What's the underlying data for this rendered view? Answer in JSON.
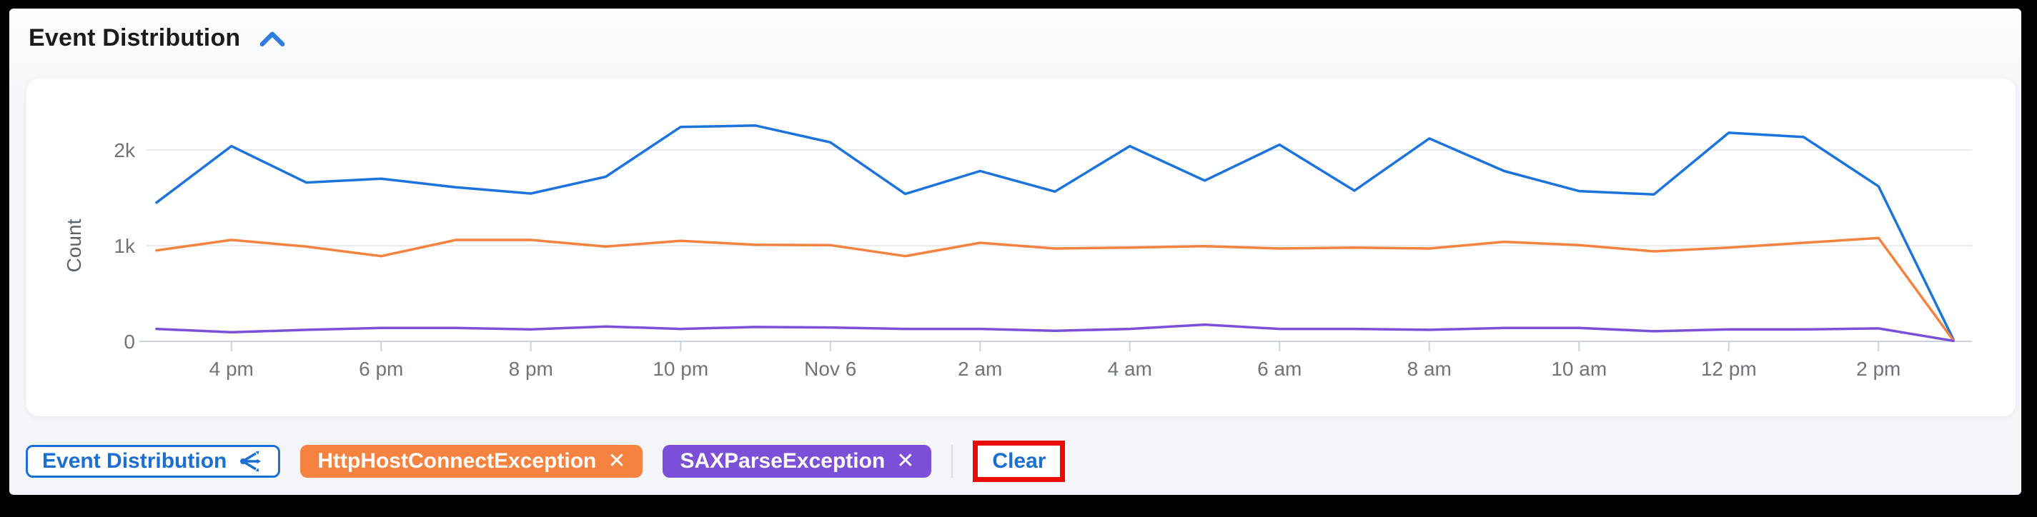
{
  "header": {
    "title": "Event Distribution",
    "collapse_icon": "chevron-up-icon"
  },
  "chart_data": {
    "type": "line",
    "title": "Event Distribution",
    "xlabel": "",
    "ylabel": "Count",
    "x": [
      "3 pm",
      "4 pm",
      "5 pm",
      "6 pm",
      "7 pm",
      "8 pm",
      "9 pm",
      "10 pm",
      "11 pm",
      "Nov 6",
      "1 am",
      "2 am",
      "3 am",
      "4 am",
      "5 am",
      "6 am",
      "7 am",
      "8 am",
      "9 am",
      "10 am",
      "11 am",
      "12 pm",
      "1 pm",
      "2 pm",
      "3 pm"
    ],
    "x_tick_labels": [
      "4 pm",
      "6 pm",
      "8 pm",
      "10 pm",
      "Nov 6",
      "2 am",
      "4 am",
      "6 am",
      "8 am",
      "10 am",
      "12 pm",
      "2 pm"
    ],
    "yticks": [
      {
        "label": "0",
        "value": 0
      },
      {
        "label": "1k",
        "value": 1000
      },
      {
        "label": "2k",
        "value": 2000
      }
    ],
    "ylim": [
      0,
      2400
    ],
    "grid": "horizontal-at-1k-2k",
    "legend_position": "none",
    "series": [
      {
        "name": "unlabeled-blue",
        "color": "#1b74dd",
        "values": [
          1450,
          2040,
          1660,
          1700,
          1610,
          1545,
          1720,
          2240,
          2255,
          2080,
          1540,
          1780,
          1565,
          2040,
          1680,
          2055,
          1575,
          2120,
          1780,
          1570,
          1535,
          2180,
          2135,
          1620,
          20
        ]
      },
      {
        "name": "HttpHostConnectException",
        "color": "#f5823f",
        "values": [
          950,
          1060,
          990,
          890,
          1060,
          1060,
          990,
          1050,
          1010,
          1005,
          890,
          1030,
          970,
          980,
          995,
          970,
          980,
          970,
          1040,
          1005,
          940,
          980,
          1030,
          1080,
          10
        ]
      },
      {
        "name": "SAXParseException",
        "color": "#7c4fd9",
        "values": [
          130,
          95,
          120,
          140,
          140,
          125,
          155,
          130,
          150,
          145,
          130,
          130,
          110,
          130,
          175,
          130,
          130,
          120,
          140,
          140,
          105,
          125,
          125,
          135,
          5
        ]
      }
    ]
  },
  "filters": {
    "chart_chip": {
      "label": "Event Distribution",
      "icon": "share-icon",
      "accent": "#1a6fd4"
    },
    "chips": [
      {
        "label": "HttpHostConnectException",
        "close": "✕",
        "color": "#f5823f"
      },
      {
        "label": "SAXParseException",
        "close": "✕",
        "color": "#7c4fd9"
      }
    ],
    "clear_label": "Clear"
  },
  "annotation": {
    "highlight_color": "#ea0b07",
    "highlighted_element": "clear-button"
  }
}
